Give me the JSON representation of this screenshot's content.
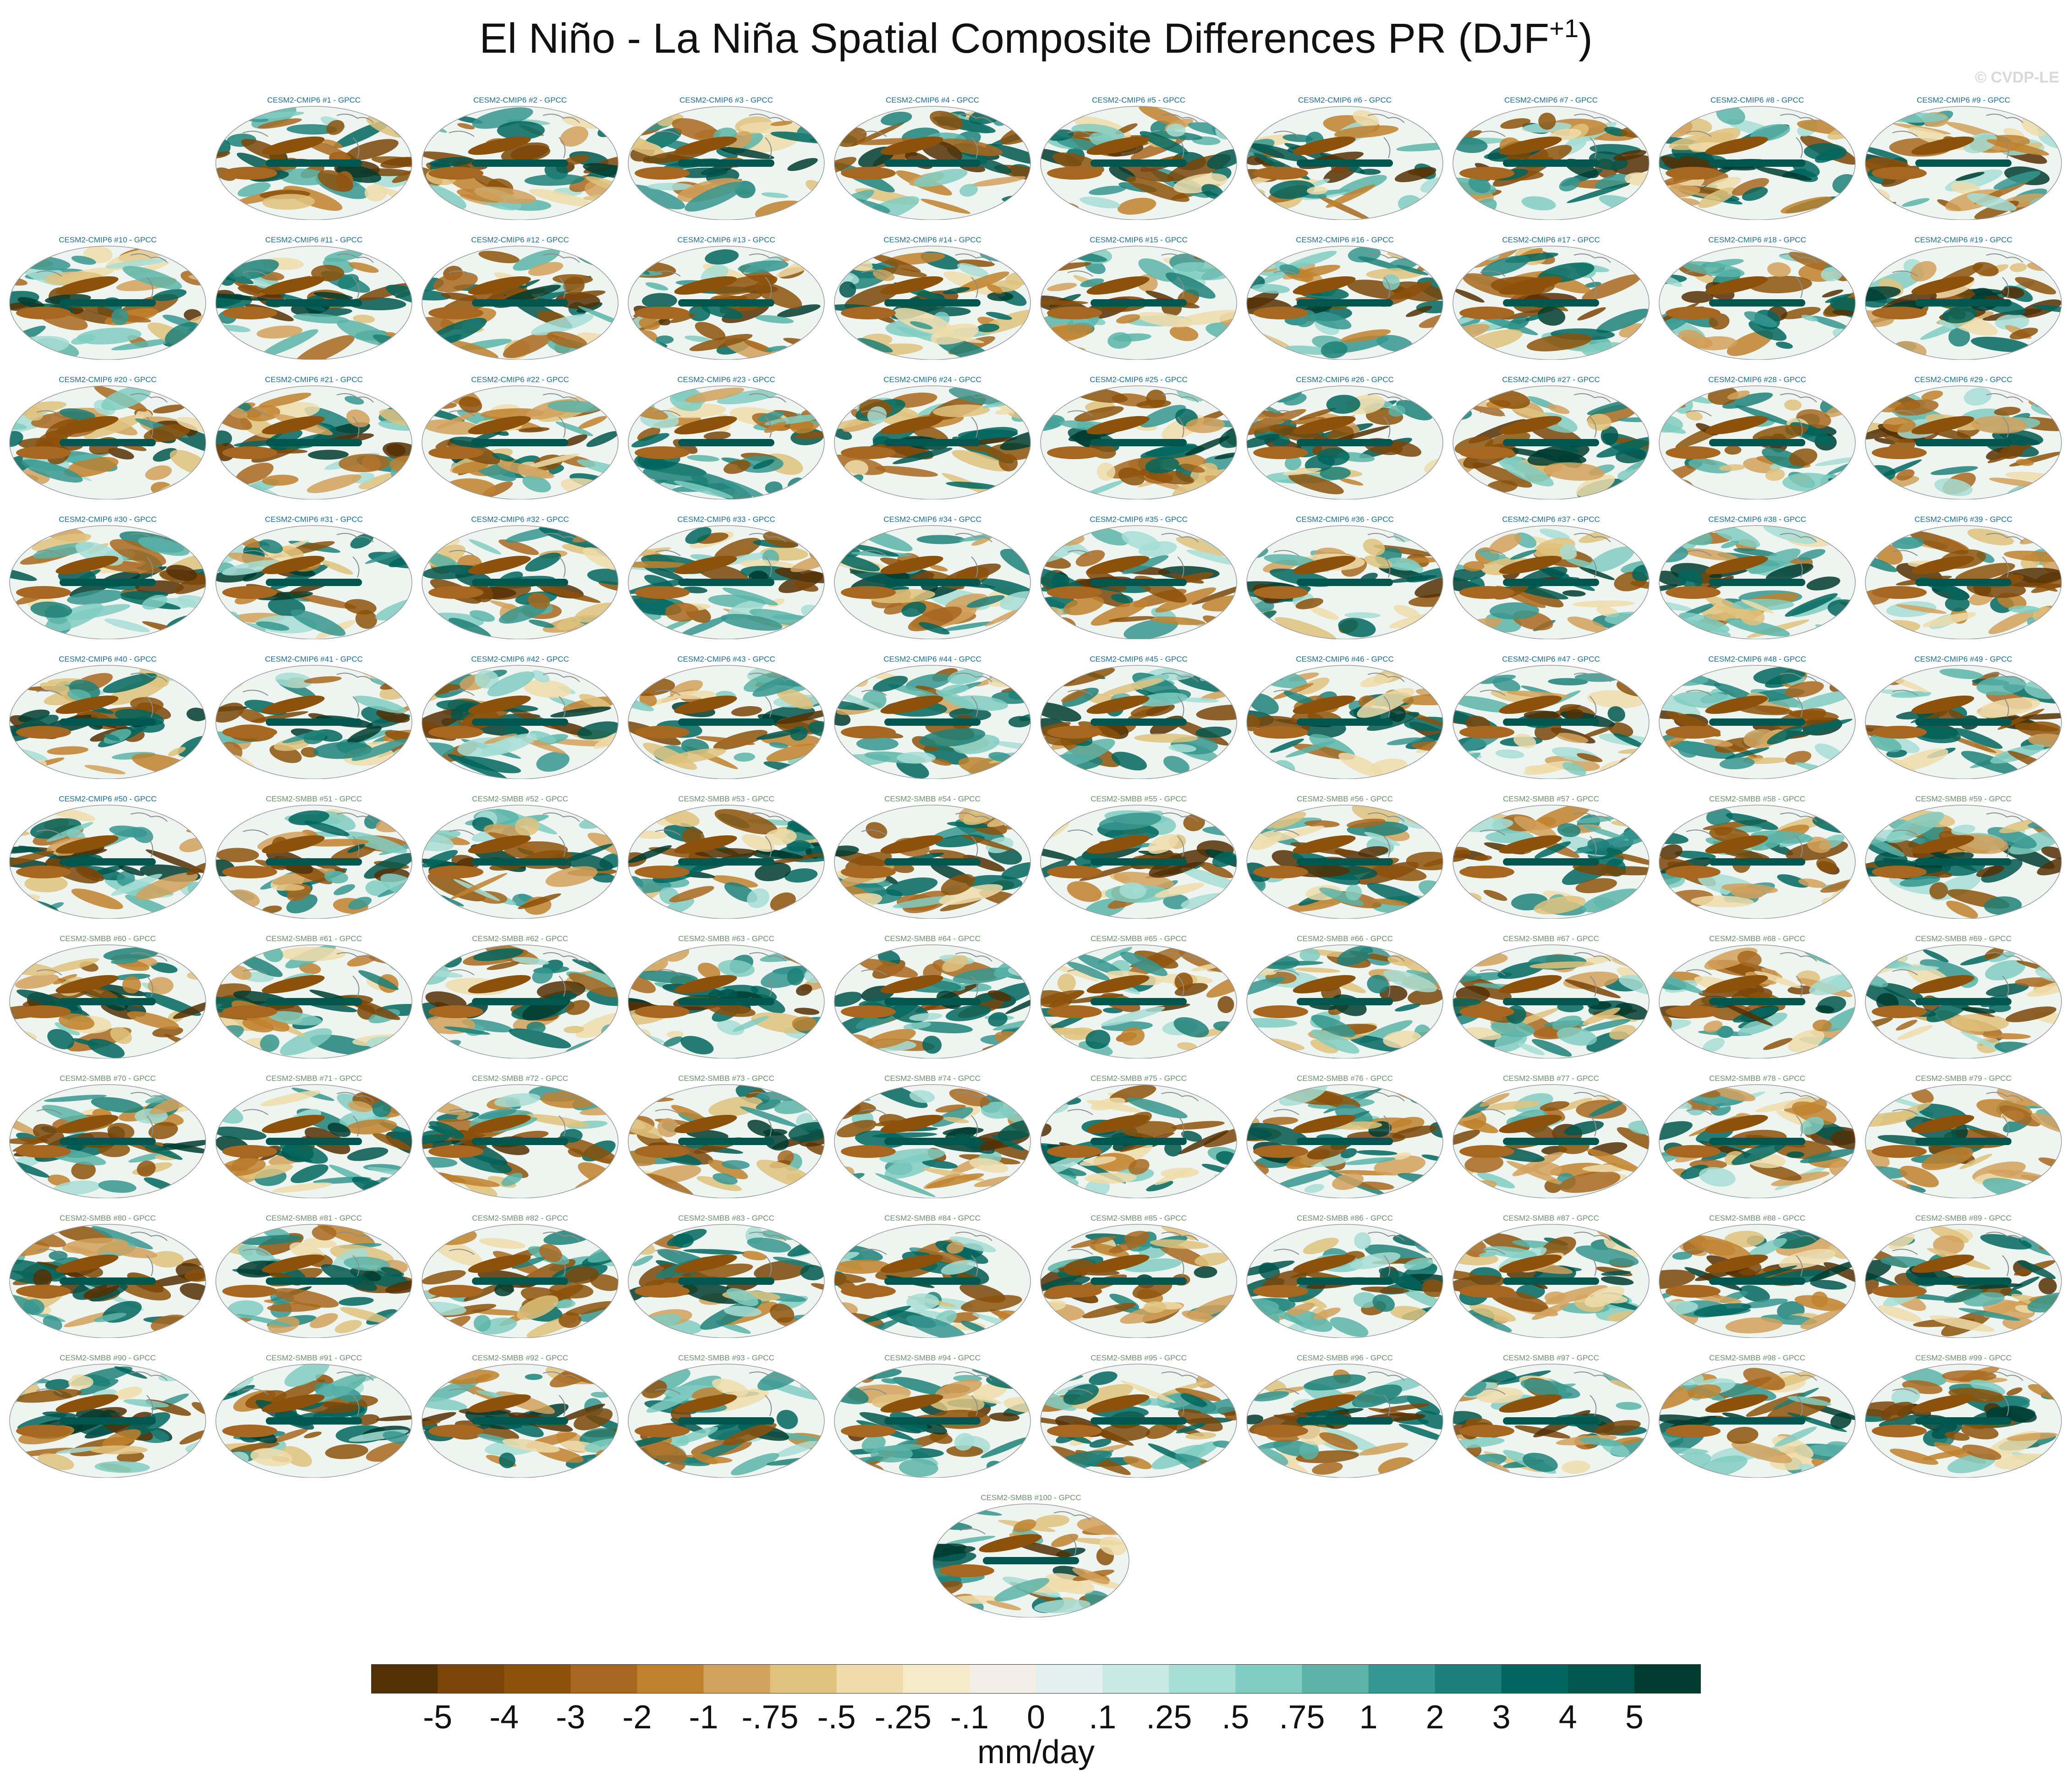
{
  "header": {
    "title_main": "El Niño - La Niña Spatial Composite Differences PR (DJF",
    "title_sup": "+1",
    "title_close": ")",
    "credit": "© CVDP-LE"
  },
  "chart_data": {
    "type": "heatmap",
    "variable": "PR",
    "season": "DJF+1",
    "projection": "global ellipse",
    "observation_reference": "GPCC",
    "panel_labels": [
      "CESM2-CMIP6 #1 - GPCC",
      "CESM2-CMIP6 #2 - GPCC",
      "CESM2-CMIP6 #3 - GPCC",
      "CESM2-CMIP6 #4 - GPCC",
      "CESM2-CMIP6 #5 - GPCC",
      "CESM2-CMIP6 #6 - GPCC",
      "CESM2-CMIP6 #7 - GPCC",
      "CESM2-CMIP6 #8 - GPCC",
      "CESM2-CMIP6 #9 - GPCC",
      "CESM2-CMIP6 #10 - GPCC",
      "CESM2-CMIP6 #11 - GPCC",
      "CESM2-CMIP6 #12 - GPCC",
      "CESM2-CMIP6 #13 - GPCC",
      "CESM2-CMIP6 #14 - GPCC",
      "CESM2-CMIP6 #15 - GPCC",
      "CESM2-CMIP6 #16 - GPCC",
      "CESM2-CMIP6 #17 - GPCC",
      "CESM2-CMIP6 #18 - GPCC",
      "CESM2-CMIP6 #19 - GPCC",
      "CESM2-CMIP6 #20 - GPCC",
      "CESM2-CMIP6 #21 - GPCC",
      "CESM2-CMIP6 #22 - GPCC",
      "CESM2-CMIP6 #23 - GPCC",
      "CESM2-CMIP6 #24 - GPCC",
      "CESM2-CMIP6 #25 - GPCC",
      "CESM2-CMIP6 #26 - GPCC",
      "CESM2-CMIP6 #27 - GPCC",
      "CESM2-CMIP6 #28 - GPCC",
      "CESM2-CMIP6 #29 - GPCC",
      "CESM2-CMIP6 #30 - GPCC",
      "CESM2-CMIP6 #31 - GPCC",
      "CESM2-CMIP6 #32 - GPCC",
      "CESM2-CMIP6 #33 - GPCC",
      "CESM2-CMIP6 #34 - GPCC",
      "CESM2-CMIP6 #35 - GPCC",
      "CESM2-CMIP6 #36 - GPCC",
      "CESM2-CMIP6 #37 - GPCC",
      "CESM2-CMIP6 #38 - GPCC",
      "CESM2-CMIP6 #39 - GPCC",
      "CESM2-CMIP6 #40 - GPCC",
      "CESM2-CMIP6 #41 - GPCC",
      "CESM2-CMIP6 #42 - GPCC",
      "CESM2-CMIP6 #43 - GPCC",
      "CESM2-CMIP6 #44 - GPCC",
      "CESM2-CMIP6 #45 - GPCC",
      "CESM2-CMIP6 #46 - GPCC",
      "CESM2-CMIP6 #47 - GPCC",
      "CESM2-CMIP6 #48 - GPCC",
      "CESM2-CMIP6 #49 - GPCC",
      "CESM2-CMIP6 #50 - GPCC",
      "CESM2-SMBB #51 - GPCC",
      "CESM2-SMBB #52 - GPCC",
      "CESM2-SMBB #53 - GPCC",
      "CESM2-SMBB #54 - GPCC",
      "CESM2-SMBB #55 - GPCC",
      "CESM2-SMBB #56 - GPCC",
      "CESM2-SMBB #57 - GPCC",
      "CESM2-SMBB #58 - GPCC",
      "CESM2-SMBB #59 - GPCC",
      "CESM2-SMBB #60 - GPCC",
      "CESM2-SMBB #61 - GPCC",
      "CESM2-SMBB #62 - GPCC",
      "CESM2-SMBB #63 - GPCC",
      "CESM2-SMBB #64 - GPCC",
      "CESM2-SMBB #65 - GPCC",
      "CESM2-SMBB #66 - GPCC",
      "CESM2-SMBB #67 - GPCC",
      "CESM2-SMBB #68 - GPCC",
      "CESM2-SMBB #69 - GPCC",
      "CESM2-SMBB #70 - GPCC",
      "CESM2-SMBB #71 - GPCC",
      "CESM2-SMBB #72 - GPCC",
      "CESM2-SMBB #73 - GPCC",
      "CESM2-SMBB #74 - GPCC",
      "CESM2-SMBB #75 - GPCC",
      "CESM2-SMBB #76 - GPCC",
      "CESM2-SMBB #77 - GPCC",
      "CESM2-SMBB #78 - GPCC",
      "CESM2-SMBB #79 - GPCC",
      "CESM2-SMBB #80 - GPCC",
      "CESM2-SMBB #81 - GPCC",
      "CESM2-SMBB #82 - GPCC",
      "CESM2-SMBB #83 - GPCC",
      "CESM2-SMBB #84 - GPCC",
      "CESM2-SMBB #85 - GPCC",
      "CESM2-SMBB #86 - GPCC",
      "CESM2-SMBB #87 - GPCC",
      "CESM2-SMBB #88 - GPCC",
      "CESM2-SMBB #89 - GPCC",
      "CESM2-SMBB #90 - GPCC",
      "CESM2-SMBB #91 - GPCC",
      "CESM2-SMBB #92 - GPCC",
      "CESM2-SMBB #93 - GPCC",
      "CESM2-SMBB #94 - GPCC",
      "CESM2-SMBB #95 - GPCC",
      "CESM2-SMBB #96 - GPCC",
      "CESM2-SMBB #97 - GPCC",
      "CESM2-SMBB #98 - GPCC",
      "CESM2-SMBB #99 - GPCC",
      "CESM2-SMBB #100 - GPCC"
    ],
    "colorbar": {
      "units": "mm/day",
      "tick_labels": [
        "-5",
        "-4",
        "-3",
        "-2",
        "-1",
        "-.75",
        "-.5",
        "-.25",
        "-.1",
        "0",
        ".1",
        ".25",
        ".5",
        ".75",
        "1",
        "2",
        "3",
        "4",
        "5"
      ],
      "colors": [
        "#543005",
        "#7a4508",
        "#8c510a",
        "#a8671f",
        "#bf812d",
        "#d2a15c",
        "#dfc27d",
        "#efdcaa",
        "#f6ebc8",
        "#f3efe7",
        "#e4f0ed",
        "#c7eae5",
        "#a6ddd4",
        "#80cdc1",
        "#5ab4a8",
        "#35978f",
        "#1d8078",
        "#01665e",
        "#01564e",
        "#003c30"
      ]
    },
    "colors": {
      "cmip6_label": "#1c6f93",
      "smbb_label": "#6f8f6f",
      "land_outline": "#8c8c8c"
    }
  }
}
